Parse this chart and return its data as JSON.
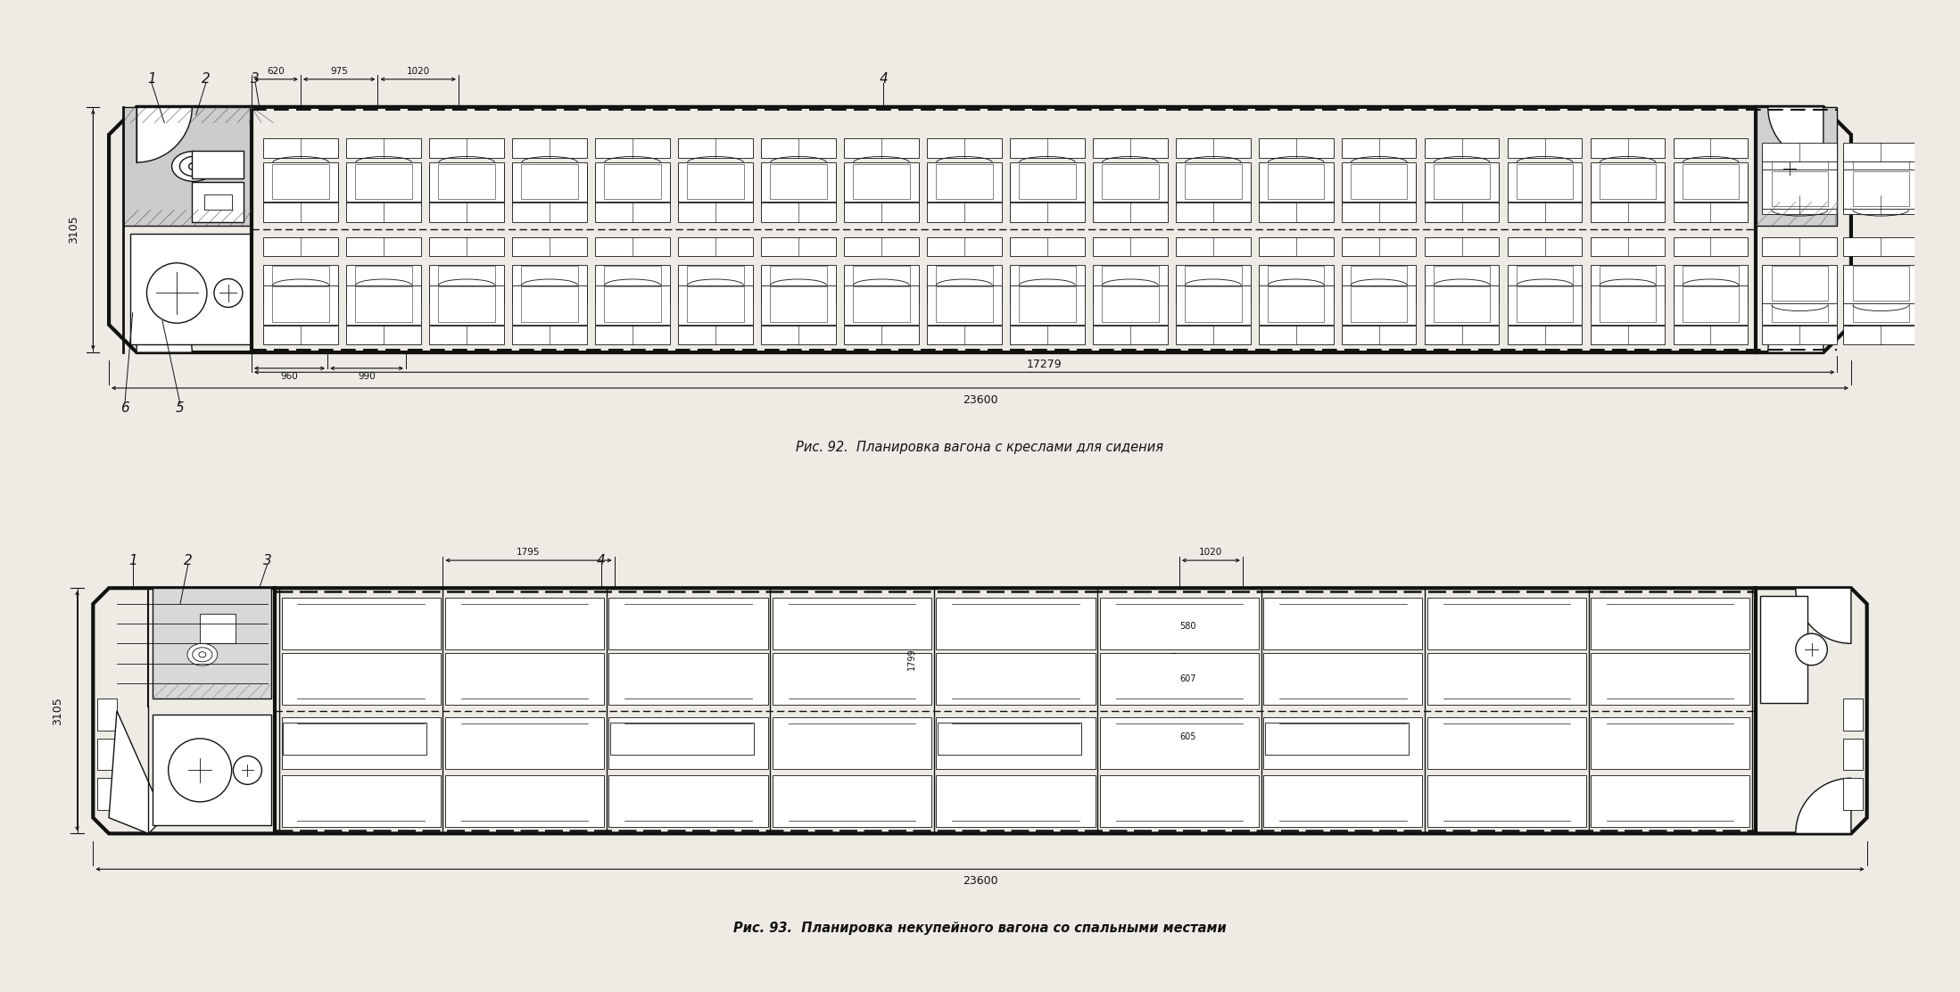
{
  "bg_color": "#eeebe4",
  "line_color": "#111111",
  "fig_width": 21.97,
  "fig_height": 11.12,
  "diagram1": {
    "caption": "Рис. 92.  Планировка вагона с креслами для сидения",
    "dim_3105": "3105",
    "dim_23600": "23600",
    "dim_17279": "17279",
    "dim_620": "620",
    "dim_975": "975",
    "dim_1020": "1020",
    "dim_960": "960",
    "dim_990": "990"
  },
  "diagram2": {
    "caption": "Рис. 93.  Планировка некупейного вагона со спальными местами",
    "dim_3105": "3105",
    "dim_23600": "23600",
    "dim_1795": "1795",
    "dim_1020": "1020",
    "dim_580": "580",
    "dim_607": "607",
    "dim_1799": "1799",
    "dim_605": "605"
  }
}
